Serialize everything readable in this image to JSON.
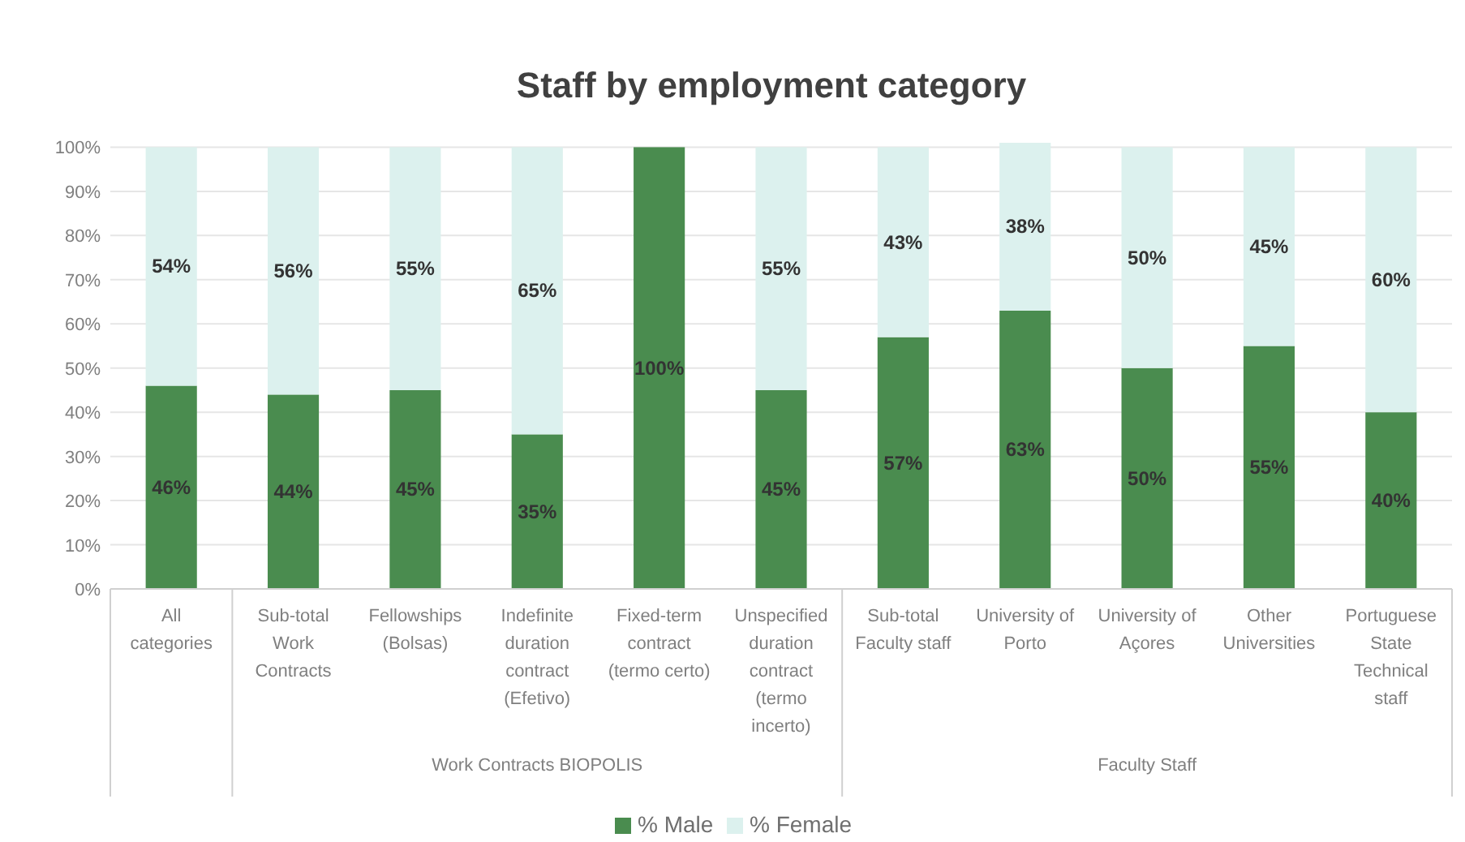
{
  "chart_data": {
    "type": "bar",
    "stacked": true,
    "title": "Staff by employment category",
    "categories": [
      "All categories",
      "Sub-total Work Contracts",
      "Fellowships (Bolsas)",
      "Indefinite duration contract (Efetivo)",
      "Fixed-term contract (termo certo)",
      "Unspecified duration contract (termo incerto)",
      "Sub-total Faculty staff",
      "University of Porto",
      "University of Açores",
      "Other Universities",
      "Portuguese State Technical staff"
    ],
    "series": [
      {
        "name": "% Male",
        "color": "#4a8c4f",
        "values": [
          46,
          44,
          45,
          35,
          100,
          45,
          57,
          63,
          50,
          55,
          40
        ],
        "value_labels": [
          "46%",
          "44%",
          "45%",
          "35%",
          "100%",
          "45%",
          "57%",
          "63%",
          "50%",
          "55%",
          "40%"
        ]
      },
      {
        "name": "% Female",
        "color": "#dcf1ee",
        "values": [
          54,
          56,
          55,
          65,
          0,
          55,
          43,
          38,
          50,
          45,
          60
        ],
        "value_labels": [
          "54%",
          "56%",
          "55%",
          "65%",
          null,
          "55%",
          "43%",
          "38%",
          "50%",
          "45%",
          "60%"
        ]
      }
    ],
    "annotations": [
      "Work Contracts BIOPOLIS",
      "Faculty Staff"
    ],
    "ylim": [
      0,
      101
    ],
    "yticks": [
      {
        "value": 0,
        "label": "0%"
      },
      {
        "value": 10,
        "label": "10%"
      },
      {
        "value": 20,
        "label": "20%"
      },
      {
        "value": 30,
        "label": "30%"
      },
      {
        "value": 40,
        "label": "40%"
      },
      {
        "value": 50,
        "label": "50%"
      },
      {
        "value": 60,
        "label": "60%"
      },
      {
        "value": 70,
        "label": "70%"
      },
      {
        "value": 80,
        "label": "80%"
      },
      {
        "value": 90,
        "label": "90%"
      },
      {
        "value": 100,
        "label": "100%"
      }
    ],
    "grid": "y",
    "legend": "bottom"
  }
}
